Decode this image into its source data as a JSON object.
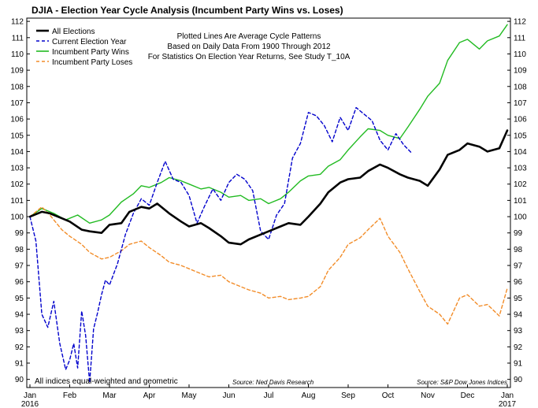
{
  "chart_data": {
    "type": "line",
    "title": "DJIA  - Election Year Cycle Analysis (Incumbent Party Wins vs. Loses)",
    "annotation_lines": [
      "Plotted Lines Are Average Cycle Patterns",
      "Based on Daily Data From 1900 Through 2012",
      "For Statistics On Election Year Returns, See Study T_10A"
    ],
    "footnote": "All indices equal-weighted and geometric",
    "source_left": "Source: Ned Davis Research",
    "source_right": "Source: S&P Dow Jones Indices",
    "x_ticks": [
      "Jan",
      "Feb",
      "Mar",
      "Apr",
      "May",
      "Jun",
      "Jul",
      "Aug",
      "Sep",
      "Oct",
      "Nov",
      "Dec",
      "Jan"
    ],
    "x_year_start": "2016",
    "x_year_end": "2017",
    "ylim": [
      89.5,
      112.2
    ],
    "y_ticks": [
      90,
      91,
      92,
      93,
      94,
      95,
      96,
      97,
      98,
      99,
      100,
      101,
      102,
      103,
      104,
      105,
      106,
      107,
      108,
      109,
      110,
      111,
      112
    ],
    "grid": false,
    "legend_position": "top-left",
    "series": [
      {
        "name": "All Elections",
        "color": "#000000",
        "style": "solid",
        "x": [
          0,
          0.3,
          0.5,
          0.8,
          1.0,
          1.3,
          1.5,
          1.8,
          2.0,
          2.3,
          2.5,
          2.8,
          3.0,
          3.2,
          3.5,
          3.8,
          4.0,
          4.3,
          4.5,
          4.8,
          5.0,
          5.3,
          5.5,
          5.8,
          6.0,
          6.3,
          6.5,
          6.8,
          7.0,
          7.3,
          7.5,
          7.8,
          8.0,
          8.3,
          8.5,
          8.8,
          9.0,
          9.3,
          9.5,
          9.8,
          10.0,
          10.3,
          10.5,
          10.8,
          11.0,
          11.3,
          11.5,
          11.8,
          12.0
        ],
        "values": [
          100.0,
          100.3,
          100.2,
          99.9,
          99.7,
          99.2,
          99.1,
          99.0,
          99.5,
          99.6,
          100.3,
          100.6,
          100.5,
          100.8,
          100.2,
          99.7,
          99.4,
          99.6,
          99.3,
          98.8,
          98.4,
          98.3,
          98.6,
          98.9,
          99.1,
          99.4,
          99.6,
          99.5,
          100.0,
          100.8,
          101.5,
          102.1,
          102.3,
          102.4,
          102.8,
          103.2,
          103.0,
          102.6,
          102.4,
          102.2,
          101.9,
          102.9,
          103.8,
          104.1,
          104.5,
          104.3,
          104.0,
          104.2,
          105.3
        ]
      },
      {
        "name": "Current Election Year",
        "color": "#0000cc",
        "style": "dashed",
        "x": [
          0,
          0.15,
          0.3,
          0.45,
          0.6,
          0.75,
          0.9,
          1.0,
          1.1,
          1.2,
          1.3,
          1.4,
          1.5,
          1.6,
          1.7,
          1.8,
          1.9,
          2.0,
          2.2,
          2.4,
          2.6,
          2.8,
          3.0,
          3.2,
          3.4,
          3.6,
          3.8,
          4.0,
          4.2,
          4.4,
          4.6,
          4.8,
          5.0,
          5.2,
          5.4,
          5.6,
          5.8,
          6.0,
          6.2,
          6.4,
          6.6,
          6.8,
          7.0,
          7.2,
          7.4,
          7.6,
          7.8,
          8.0,
          8.2,
          8.4,
          8.6,
          8.8,
          9.0,
          9.2,
          9.4,
          9.6
        ],
        "values": [
          100.0,
          98.5,
          94.0,
          93.2,
          94.8,
          92.2,
          90.6,
          91.2,
          92.2,
          90.7,
          94.2,
          92.7,
          89.8,
          93.1,
          94.1,
          95.2,
          96.1,
          95.8,
          97.1,
          98.9,
          100.2,
          101.1,
          100.7,
          102.1,
          103.4,
          102.3,
          102.1,
          101.3,
          99.6,
          100.7,
          101.7,
          101.0,
          102.1,
          102.6,
          102.3,
          101.6,
          99.1,
          98.6,
          100.1,
          100.8,
          103.6,
          104.5,
          106.4,
          106.2,
          105.6,
          104.6,
          106.1,
          105.3,
          106.7,
          106.3,
          105.9,
          104.7,
          104.1,
          105.1,
          104.4,
          103.9
        ]
      },
      {
        "name": "Incumbent Party Wins",
        "color": "#22bb22",
        "style": "solid",
        "x": [
          0,
          0.3,
          0.6,
          0.9,
          1.2,
          1.5,
          1.8,
          2.0,
          2.3,
          2.6,
          2.8,
          3.0,
          3.3,
          3.5,
          3.8,
          4.0,
          4.3,
          4.5,
          4.8,
          5.0,
          5.3,
          5.5,
          5.8,
          6.0,
          6.3,
          6.5,
          6.8,
          7.0,
          7.3,
          7.5,
          7.8,
          8.0,
          8.3,
          8.5,
          8.8,
          9.0,
          9.3,
          9.5,
          9.8,
          10.0,
          10.3,
          10.5,
          10.8,
          11.0,
          11.3,
          11.5,
          11.8,
          12.0
        ],
        "values": [
          100.0,
          100.5,
          100.2,
          99.8,
          100.1,
          99.6,
          99.8,
          100.1,
          100.9,
          101.4,
          101.9,
          101.8,
          102.1,
          102.4,
          102.2,
          102.0,
          101.7,
          101.8,
          101.5,
          101.2,
          101.3,
          101.0,
          101.1,
          100.8,
          101.1,
          101.5,
          102.2,
          102.5,
          102.6,
          103.1,
          103.5,
          104.1,
          104.9,
          105.4,
          105.3,
          105.0,
          104.8,
          105.5,
          106.6,
          107.4,
          108.2,
          109.6,
          110.7,
          110.9,
          110.3,
          110.8,
          111.1,
          111.8
        ]
      },
      {
        "name": "Incumbent Party Loses",
        "color": "#f28c28",
        "style": "dashed",
        "x": [
          0,
          0.3,
          0.5,
          0.8,
          1.0,
          1.3,
          1.5,
          1.8,
          2.0,
          2.3,
          2.5,
          2.8,
          3.0,
          3.3,
          3.5,
          3.8,
          4.0,
          4.3,
          4.5,
          4.8,
          5.0,
          5.3,
          5.5,
          5.8,
          6.0,
          6.3,
          6.5,
          6.8,
          7.0,
          7.3,
          7.5,
          7.8,
          8.0,
          8.3,
          8.5,
          8.8,
          9.0,
          9.3,
          9.5,
          9.8,
          10.0,
          10.3,
          10.5,
          10.8,
          11.0,
          11.3,
          11.5,
          11.8,
          12.0
        ],
        "values": [
          100.0,
          100.6,
          100.1,
          99.2,
          98.8,
          98.3,
          97.8,
          97.4,
          97.5,
          97.9,
          98.3,
          98.5,
          98.1,
          97.6,
          97.2,
          97.0,
          96.8,
          96.5,
          96.3,
          96.4,
          96.0,
          95.7,
          95.5,
          95.3,
          95.0,
          95.1,
          94.9,
          95.0,
          95.1,
          95.7,
          96.7,
          97.5,
          98.3,
          98.7,
          99.2,
          99.9,
          98.8,
          97.8,
          96.8,
          95.4,
          94.5,
          94.0,
          93.4,
          95.0,
          95.2,
          94.5,
          94.6,
          93.9,
          95.6
        ]
      }
    ]
  }
}
